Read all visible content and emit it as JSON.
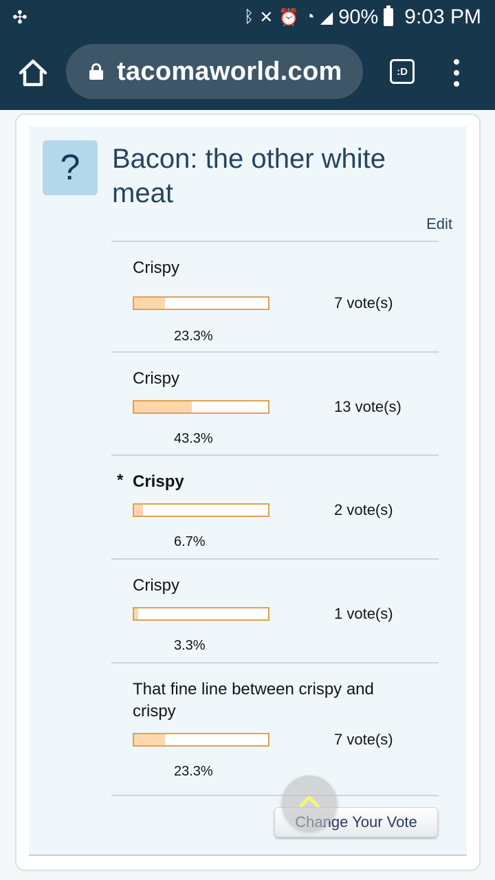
{
  "status_bar": {
    "battery": "90%",
    "time": "9:03 PM",
    "left_icon": "no-notifications-icon",
    "icons": [
      "bluetooth-icon",
      "mute-icon",
      "alarm-icon",
      "wifi-icon",
      "signal-icon",
      "battery-icon"
    ]
  },
  "browser": {
    "url": "tacomaworld.com",
    "tab_label": ":D"
  },
  "poll": {
    "question_mark": "?",
    "title": "Bacon: the other white meat",
    "edit_label": "Edit",
    "options": [
      {
        "label": "Crispy",
        "votes": "7 vote(s)",
        "percent": "23.3%",
        "fraction": 0.233,
        "selected": false
      },
      {
        "label": "Crispy",
        "votes": "13 vote(s)",
        "percent": "43.3%",
        "fraction": 0.433,
        "selected": false
      },
      {
        "label": "Crispy",
        "votes": "2 vote(s)",
        "percent": "6.7%",
        "fraction": 0.067,
        "selected": true,
        "marker": "*"
      },
      {
        "label": "Crispy",
        "votes": "1 vote(s)",
        "percent": "3.3%",
        "fraction": 0.033,
        "selected": false
      },
      {
        "label": "That fine line between crispy and crispy",
        "votes": "7 vote(s)",
        "percent": "23.3%",
        "fraction": 0.233,
        "selected": false
      }
    ],
    "change_vote_label": "Change Your Vote"
  },
  "colors": {
    "header_bg": "#17374d",
    "url_pill_bg": "#3d5769",
    "bar_border": "#e0a050",
    "bar_fill": "#fdd7ab",
    "title_text": "#24455f"
  }
}
